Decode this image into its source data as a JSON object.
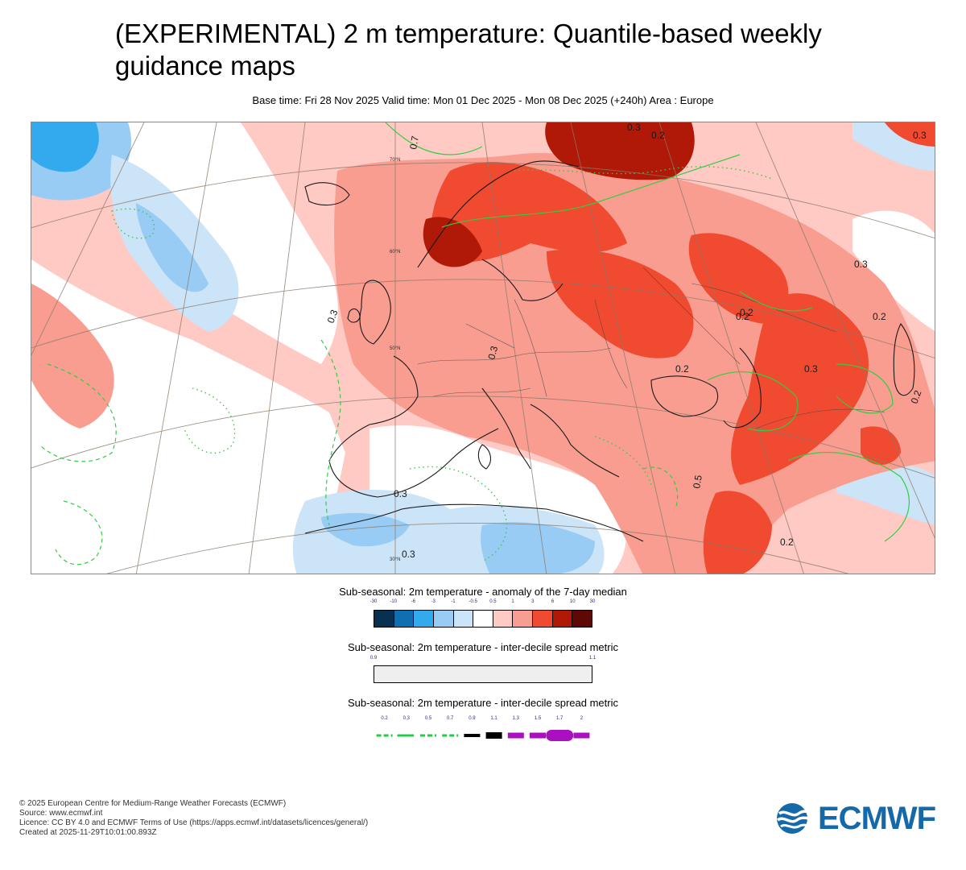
{
  "header": {
    "title": "(EXPERIMENTAL) 2 m temperature: Quantile-based weekly guidance maps",
    "subtitle": "Base time: Fri 28 Nov 2025 Valid time: Mon 01 Dec 2025 - Mon 08 Dec 2025 (+240h) Area : Europe"
  },
  "map": {
    "lat_labels": [
      "70°N",
      "60°N",
      "50°N",
      "30°N"
    ],
    "contour_labels": [
      "0.3",
      "0.7",
      "0.2",
      "0.3",
      "0.3",
      "0.2",
      "0.2",
      "0.3",
      "0.2",
      "0.3",
      "0.3",
      "0.2",
      "0.5",
      "0.3",
      "0.3",
      "0.2",
      "0.2"
    ]
  },
  "legend1": {
    "title": "Sub-seasonal: 2m temperature - anomaly of the 7-day median",
    "ticks": [
      "-30",
      "-10",
      "-6",
      "-3",
      "-1",
      "-0.5",
      "0.5",
      "1",
      "3",
      "6",
      "10",
      "30"
    ],
    "colors": [
      "#0a3050",
      "#0f6fb0",
      "#33aaee",
      "#99ccf4",
      "#cce4f8",
      "#ffffff",
      "#ffc9c4",
      "#f89d90",
      "#f04a30",
      "#b01808",
      "#5e0a04"
    ]
  },
  "legend2": {
    "title": "Sub-seasonal: 2m temperature - inter-decile spread metric",
    "ticks": [
      "0.9",
      "1.1"
    ],
    "fill": "#efefef"
  },
  "legend3": {
    "title": "Sub-seasonal: 2m temperature - inter-decile spread metric",
    "ticks": [
      "0.2",
      "0.3",
      "0.5",
      "0.7",
      "0.9",
      "1.1",
      "1.3",
      "1.5",
      "1.7",
      "2"
    ],
    "colors": [
      "#22cc44",
      "#22cc44",
      "#22cc44",
      "#22cc44",
      "#000000",
      "#000000",
      "#aa10c0",
      "#aa10c0",
      "#aa10c0",
      "#aa10c0"
    ]
  },
  "footer": {
    "line1": "© 2025 European Centre for Medium-Range Weather Forecasts (ECMWF)",
    "line2": "Source: www.ecmwf.int",
    "line3": "Licence: CC BY 4.0 and ECMWF Terms of Use (https://apps.ecmwf.int/datasets/licences/general/)",
    "line4": "Created at 2025-11-29T10:01:00.893Z",
    "logo_text": "ECMWF"
  }
}
